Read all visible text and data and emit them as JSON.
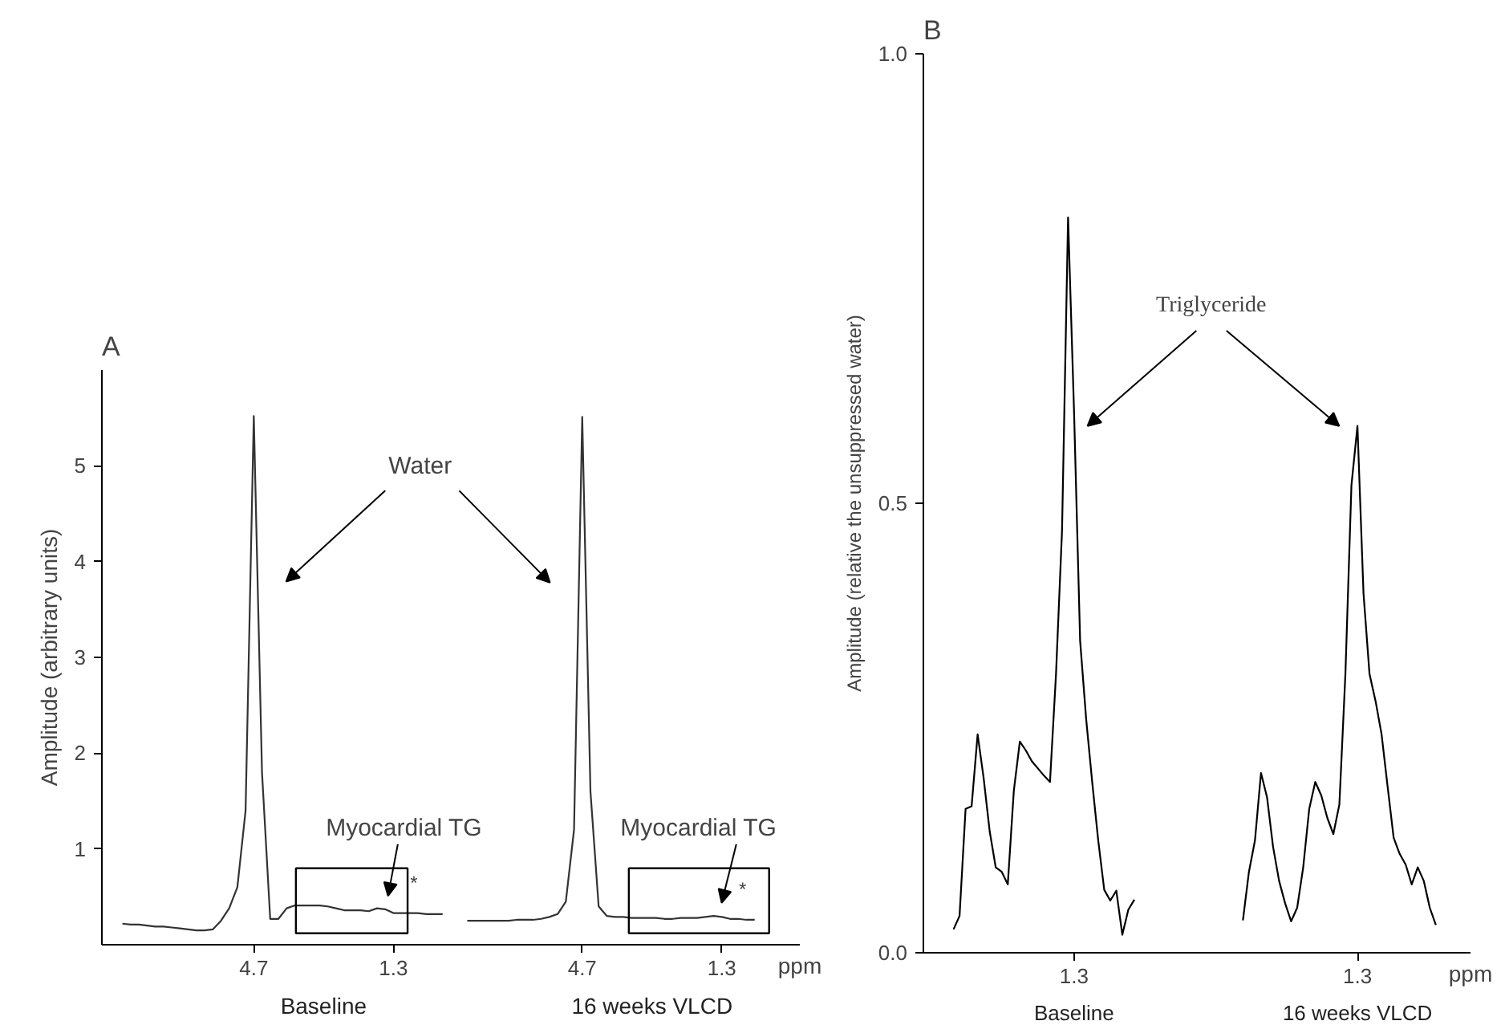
{
  "chart_data": [
    {
      "type": "line",
      "title": "A",
      "ylabel": "Amplitude (arbitrary units)",
      "xlabel": "ppm",
      "ylim": [
        0,
        6
      ],
      "categories": [
        null,
        null,
        null,
        null,
        null,
        null,
        null,
        null,
        null,
        null,
        null,
        null,
        null,
        null,
        null,
        null,
        "4.7",
        null,
        null,
        null,
        null,
        null,
        null,
        null,
        null,
        null,
        null,
        null,
        null,
        null,
        null,
        null,
        null,
        "1.3",
        null,
        null,
        null,
        null,
        null,
        null,
        null,
        null,
        null,
        null,
        null,
        null,
        null,
        null,
        null,
        null,
        null,
        null,
        null,
        null,
        null,
        null,
        "4.7",
        null,
        null,
        null,
        null,
        null,
        null,
        null,
        null,
        null,
        null,
        null,
        null,
        null,
        null,
        null,
        null,
        "1.3",
        null,
        null,
        null,
        null
      ],
      "yticks": [
        1,
        2,
        3,
        4,
        5
      ],
      "grid": false,
      "marker": "none",
      "line_style": "solid",
      "series": [
        {
          "color": "#333333",
          "values": [
            0.22,
            0.21,
            0.21,
            0.2,
            0.19,
            0.19,
            0.18,
            0.17,
            0.16,
            0.15,
            0.15,
            0.16,
            0.25,
            0.38,
            0.6,
            1.4,
            5.52,
            1.8,
            0.27,
            0.27,
            0.38,
            0.41,
            0.41,
            0.41,
            0.41,
            0.4,
            0.38,
            0.36,
            0.36,
            0.36,
            0.35,
            0.38,
            0.37,
            0.33,
            0.33,
            0.33,
            0.33,
            0.32,
            0.32,
            0.32,
            null,
            null,
            null,
            null,
            null,
            null,
            null,
            null,
            null,
            null,
            null,
            null,
            null,
            null,
            null,
            null,
            null,
            null,
            null,
            null,
            null,
            null,
            null,
            null,
            null,
            null,
            null,
            null,
            null,
            null,
            null,
            null,
            null,
            null,
            null,
            null,
            null,
            null
          ]
        },
        {
          "color": "#333333",
          "values": [
            null,
            null,
            null,
            null,
            null,
            null,
            null,
            null,
            null,
            null,
            null,
            null,
            null,
            null,
            null,
            null,
            null,
            null,
            null,
            null,
            null,
            null,
            null,
            null,
            null,
            null,
            null,
            null,
            null,
            null,
            null,
            null,
            null,
            null,
            null,
            null,
            null,
            null,
            null,
            null,
            null,
            null,
            0.25,
            0.25,
            0.25,
            0.25,
            0.25,
            0.25,
            0.26,
            0.26,
            0.26,
            0.27,
            0.29,
            0.32,
            0.45,
            1.2,
            5.51,
            1.6,
            0.4,
            0.3,
            0.29,
            0.29,
            0.28,
            0.28,
            0.28,
            0.28,
            0.27,
            0.27,
            0.28,
            0.28,
            0.28,
            0.29,
            0.3,
            0.29,
            0.27,
            0.27,
            0.26,
            0.26
          ]
        }
      ],
      "annotations": [
        "Water",
        "Myocardial TG",
        "*",
        "Myocardial TG",
        "*",
        "Baseline",
        "16 weeks VLCD"
      ]
    },
    {
      "type": "line",
      "title": "B",
      "ylabel": "Amplitude (relative the unsuppressed water)",
      "xlabel": "ppm",
      "ylim": [
        0,
        1
      ],
      "categories": [
        null,
        null,
        null,
        null,
        null,
        null,
        null,
        null,
        null,
        null,
        null,
        null,
        null,
        null,
        null,
        null,
        null,
        null,
        null,
        null,
        "1.3",
        null,
        null,
        null,
        null,
        null,
        null,
        null,
        null,
        null,
        null,
        null,
        null,
        null,
        null,
        null,
        null,
        null,
        null,
        null,
        null,
        null,
        null,
        null,
        null,
        null,
        null,
        null,
        null,
        null,
        null,
        null,
        null,
        null,
        null,
        null,
        null,
        null,
        null,
        null,
        null,
        null,
        null,
        null,
        null,
        null,
        null,
        "1.3",
        null,
        null,
        null,
        null,
        null,
        null,
        null,
        null,
        null,
        null,
        null,
        null,
        null
      ],
      "yticks": [
        {
          "value": 0,
          "label": "0.0"
        },
        0.5,
        {
          "value": 1,
          "label": "1.0"
        }
      ],
      "grid": false,
      "marker": "none",
      "line_style": "solid",
      "series": [
        {
          "color": "#000000",
          "values": [
            0.026,
            0.041,
            0.16,
            0.163,
            0.243,
            0.194,
            0.135,
            0.095,
            0.09,
            0.076,
            0.18,
            0.235,
            0.225,
            0.213,
            0.205,
            0.197,
            0.19,
            0.31,
            0.47,
            0.818,
            0.6,
            0.347,
            0.26,
            0.19,
            0.125,
            0.07,
            0.058,
            0.069,
            0.02,
            0.048,
            0.059,
            null,
            null,
            null,
            null,
            null,
            null,
            null,
            null,
            null,
            null,
            null,
            null,
            null,
            null,
            null,
            null,
            null,
            null,
            null,
            null,
            null,
            null,
            null,
            null,
            null,
            null,
            null,
            null,
            null,
            null,
            null,
            null,
            null,
            null,
            null,
            null,
            null,
            null,
            null,
            null,
            null,
            null,
            null,
            null,
            null,
            null,
            null,
            null,
            null,
            null
          ]
        },
        {
          "color": "#000000",
          "values": [
            null,
            null,
            null,
            null,
            null,
            null,
            null,
            null,
            null,
            null,
            null,
            null,
            null,
            null,
            null,
            null,
            null,
            null,
            null,
            null,
            null,
            null,
            null,
            null,
            null,
            null,
            null,
            null,
            null,
            null,
            null,
            null,
            null,
            null,
            null,
            null,
            null,
            null,
            null,
            null,
            null,
            null,
            null,
            null,
            null,
            null,
            null,
            null,
            0.036,
            0.09,
            0.125,
            0.2,
            0.173,
            0.118,
            0.08,
            0.055,
            0.035,
            0.05,
            0.095,
            0.16,
            0.19,
            0.175,
            0.15,
            0.132,
            0.165,
            0.31,
            0.52,
            0.586,
            0.4,
            0.31,
            0.28,
            0.243,
            0.185,
            0.128,
            0.11,
            0.098,
            0.076,
            0.095,
            0.08,
            0.05,
            0.031
          ]
        }
      ],
      "annotations": [
        "Triglyceride",
        "Baseline",
        "16 weeks VLCD"
      ]
    }
  ]
}
